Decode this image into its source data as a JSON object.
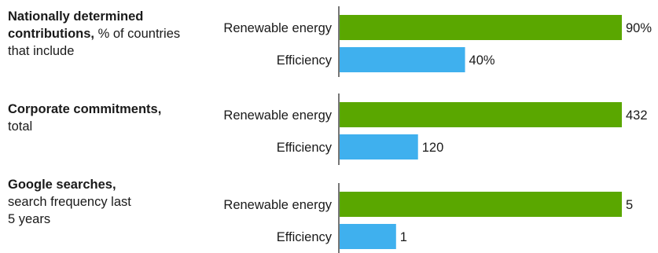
{
  "chart_data": [
    {
      "type": "bar",
      "title_bold": "Nationally determined contributions,",
      "title_rest": " % of countries that include",
      "categories": [
        "Renewable energy",
        "Efficiency"
      ],
      "values": [
        90,
        40
      ],
      "value_labels": [
        "90%",
        "40%"
      ],
      "colors": [
        "#5aa700",
        "#3fb0ee"
      ],
      "xlim": [
        0,
        90
      ]
    },
    {
      "type": "bar",
      "title_bold": "Corporate commitments,",
      "title_rest": " total",
      "categories": [
        "Renewable energy",
        "Efficiency"
      ],
      "values": [
        432,
        120
      ],
      "value_labels": [
        "432",
        "120"
      ],
      "colors": [
        "#5aa700",
        "#3fb0ee"
      ],
      "xlim": [
        0,
        432
      ]
    },
    {
      "type": "bar",
      "title_bold": "Google searches,",
      "title_rest": " search frequency last 5 years",
      "categories": [
        "Renewable energy",
        "Efficiency"
      ],
      "values": [
        5,
        1
      ],
      "value_labels": [
        "5",
        "1"
      ],
      "colors": [
        "#5aa700",
        "#3fb0ee"
      ],
      "xlim": [
        0,
        5
      ]
    }
  ]
}
